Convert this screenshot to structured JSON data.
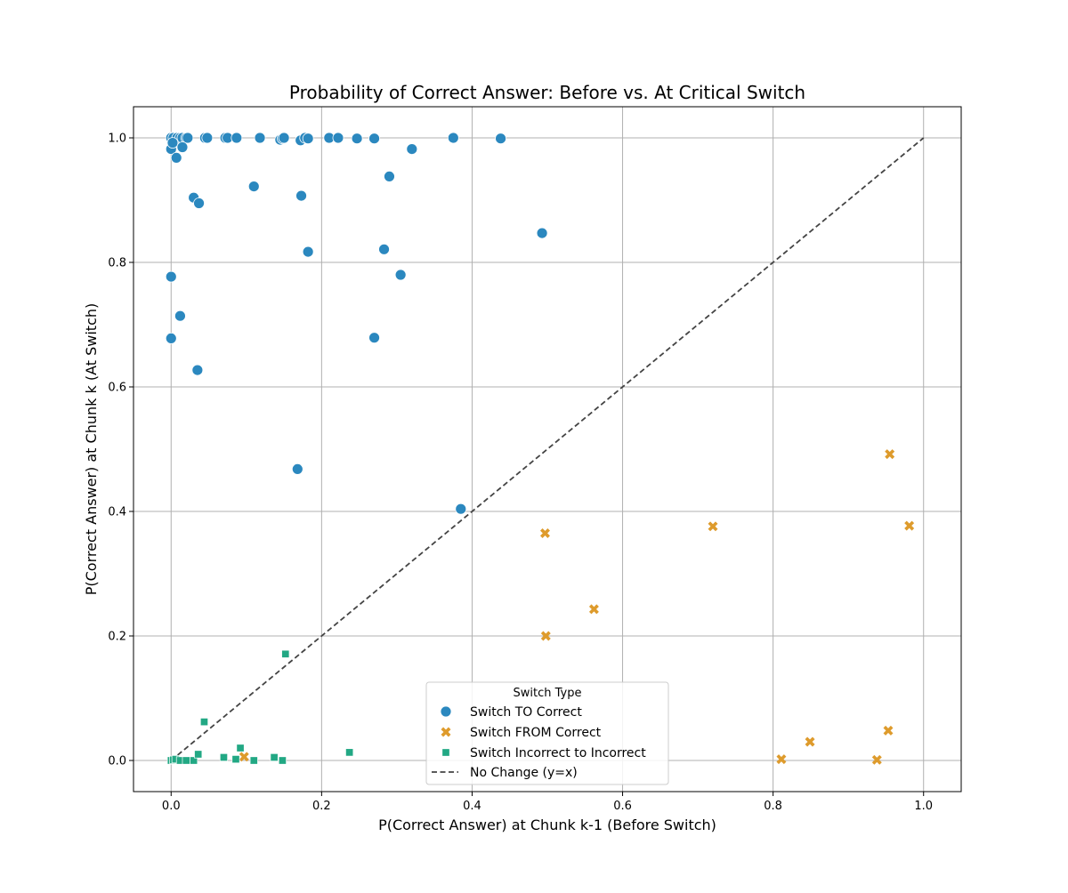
{
  "chart_data": {
    "type": "scatter",
    "title": "Probability of Correct Answer: Before vs. At Critical Switch",
    "xlabel": "P(Correct Answer) at Chunk k-1 (Before Switch)",
    "ylabel": "P(Correct Answer) at Chunk k (At Switch)",
    "xlim": [
      -0.05,
      1.05
    ],
    "ylim": [
      -0.05,
      1.05
    ],
    "xticks": [
      0.0,
      0.2,
      0.4,
      0.6,
      0.8,
      1.0
    ],
    "yticks": [
      0.0,
      0.2,
      0.4,
      0.6,
      0.8,
      1.0
    ],
    "xtick_labels": [
      "0.0",
      "0.2",
      "0.4",
      "0.6",
      "0.8",
      "1.0"
    ],
    "ytick_labels": [
      "0.0",
      "0.2",
      "0.4",
      "0.6",
      "0.8",
      "1.0"
    ],
    "grid": true,
    "legend": {
      "title": "Switch Type",
      "placement": "lower center",
      "labels": [
        "Switch TO Correct",
        "Switch FROM Correct",
        "Switch Incorrect to Incorrect",
        "No Change (y=x)"
      ]
    },
    "series": [
      {
        "name": "Switch TO Correct",
        "marker": "circle",
        "color": "#2b88bf",
        "x": [
          0.0,
          0.0,
          0.003,
          0.008,
          0.012,
          0.015,
          0.02,
          0.022,
          0.045,
          0.048,
          0.072,
          0.075,
          0.087,
          0.118,
          0.145,
          0.148,
          0.15,
          0.172,
          0.178,
          0.182,
          0.21,
          0.222,
          0.247,
          0.27,
          0.375,
          0.438,
          0.0,
          0.002,
          0.007,
          0.015,
          0.32,
          0.03,
          0.037,
          0.11,
          0.173,
          0.29,
          0.493,
          0.0,
          0.182,
          0.283,
          0.305,
          0.0,
          0.012,
          0.27,
          0.035,
          0.168,
          0.385
        ],
        "y": [
          1.0,
          1.0,
          1.0,
          1.0,
          1.0,
          1.0,
          1.0,
          1.0,
          1.0,
          1.0,
          1.0,
          1.0,
          1.0,
          1.0,
          0.997,
          0.999,
          1.0,
          0.996,
          1.0,
          0.999,
          1.0,
          1.0,
          0.999,
          0.999,
          1.0,
          0.999,
          0.982,
          0.992,
          0.968,
          0.985,
          0.982,
          0.904,
          0.895,
          0.922,
          0.907,
          0.938,
          0.847,
          0.777,
          0.817,
          0.821,
          0.78,
          0.678,
          0.714,
          0.679,
          0.627,
          0.468,
          0.404
        ]
      },
      {
        "name": "Switch FROM Correct",
        "marker": "x",
        "color": "#de9b2c",
        "x": [
          0.097,
          0.497,
          0.498,
          0.562,
          0.72,
          0.811,
          0.849,
          0.938,
          0.953,
          0.955,
          0.981
        ],
        "y": [
          0.006,
          0.365,
          0.2,
          0.243,
          0.376,
          0.002,
          0.03,
          0.001,
          0.048,
          0.492,
          0.377
        ]
      },
      {
        "name": "Switch Incorrect to Incorrect",
        "marker": "square",
        "color": "#22a884",
        "x": [
          0.0,
          0.003,
          0.006,
          0.012,
          0.02,
          0.03,
          0.036,
          0.044,
          0.07,
          0.086,
          0.092,
          0.11,
          0.137,
          0.148,
          0.152,
          0.237
        ],
        "y": [
          0.0,
          0.001,
          0.002,
          0.0,
          0.0,
          0.0,
          0.01,
          0.062,
          0.005,
          0.002,
          0.02,
          0.0,
          0.005,
          0.0,
          0.171,
          0.013
        ]
      }
    ],
    "reference_line": {
      "name": "No Change (y=x)",
      "style": "dashed",
      "color": "#444444",
      "x": [
        0.0,
        1.0
      ],
      "y": [
        0.0,
        1.0
      ]
    }
  }
}
